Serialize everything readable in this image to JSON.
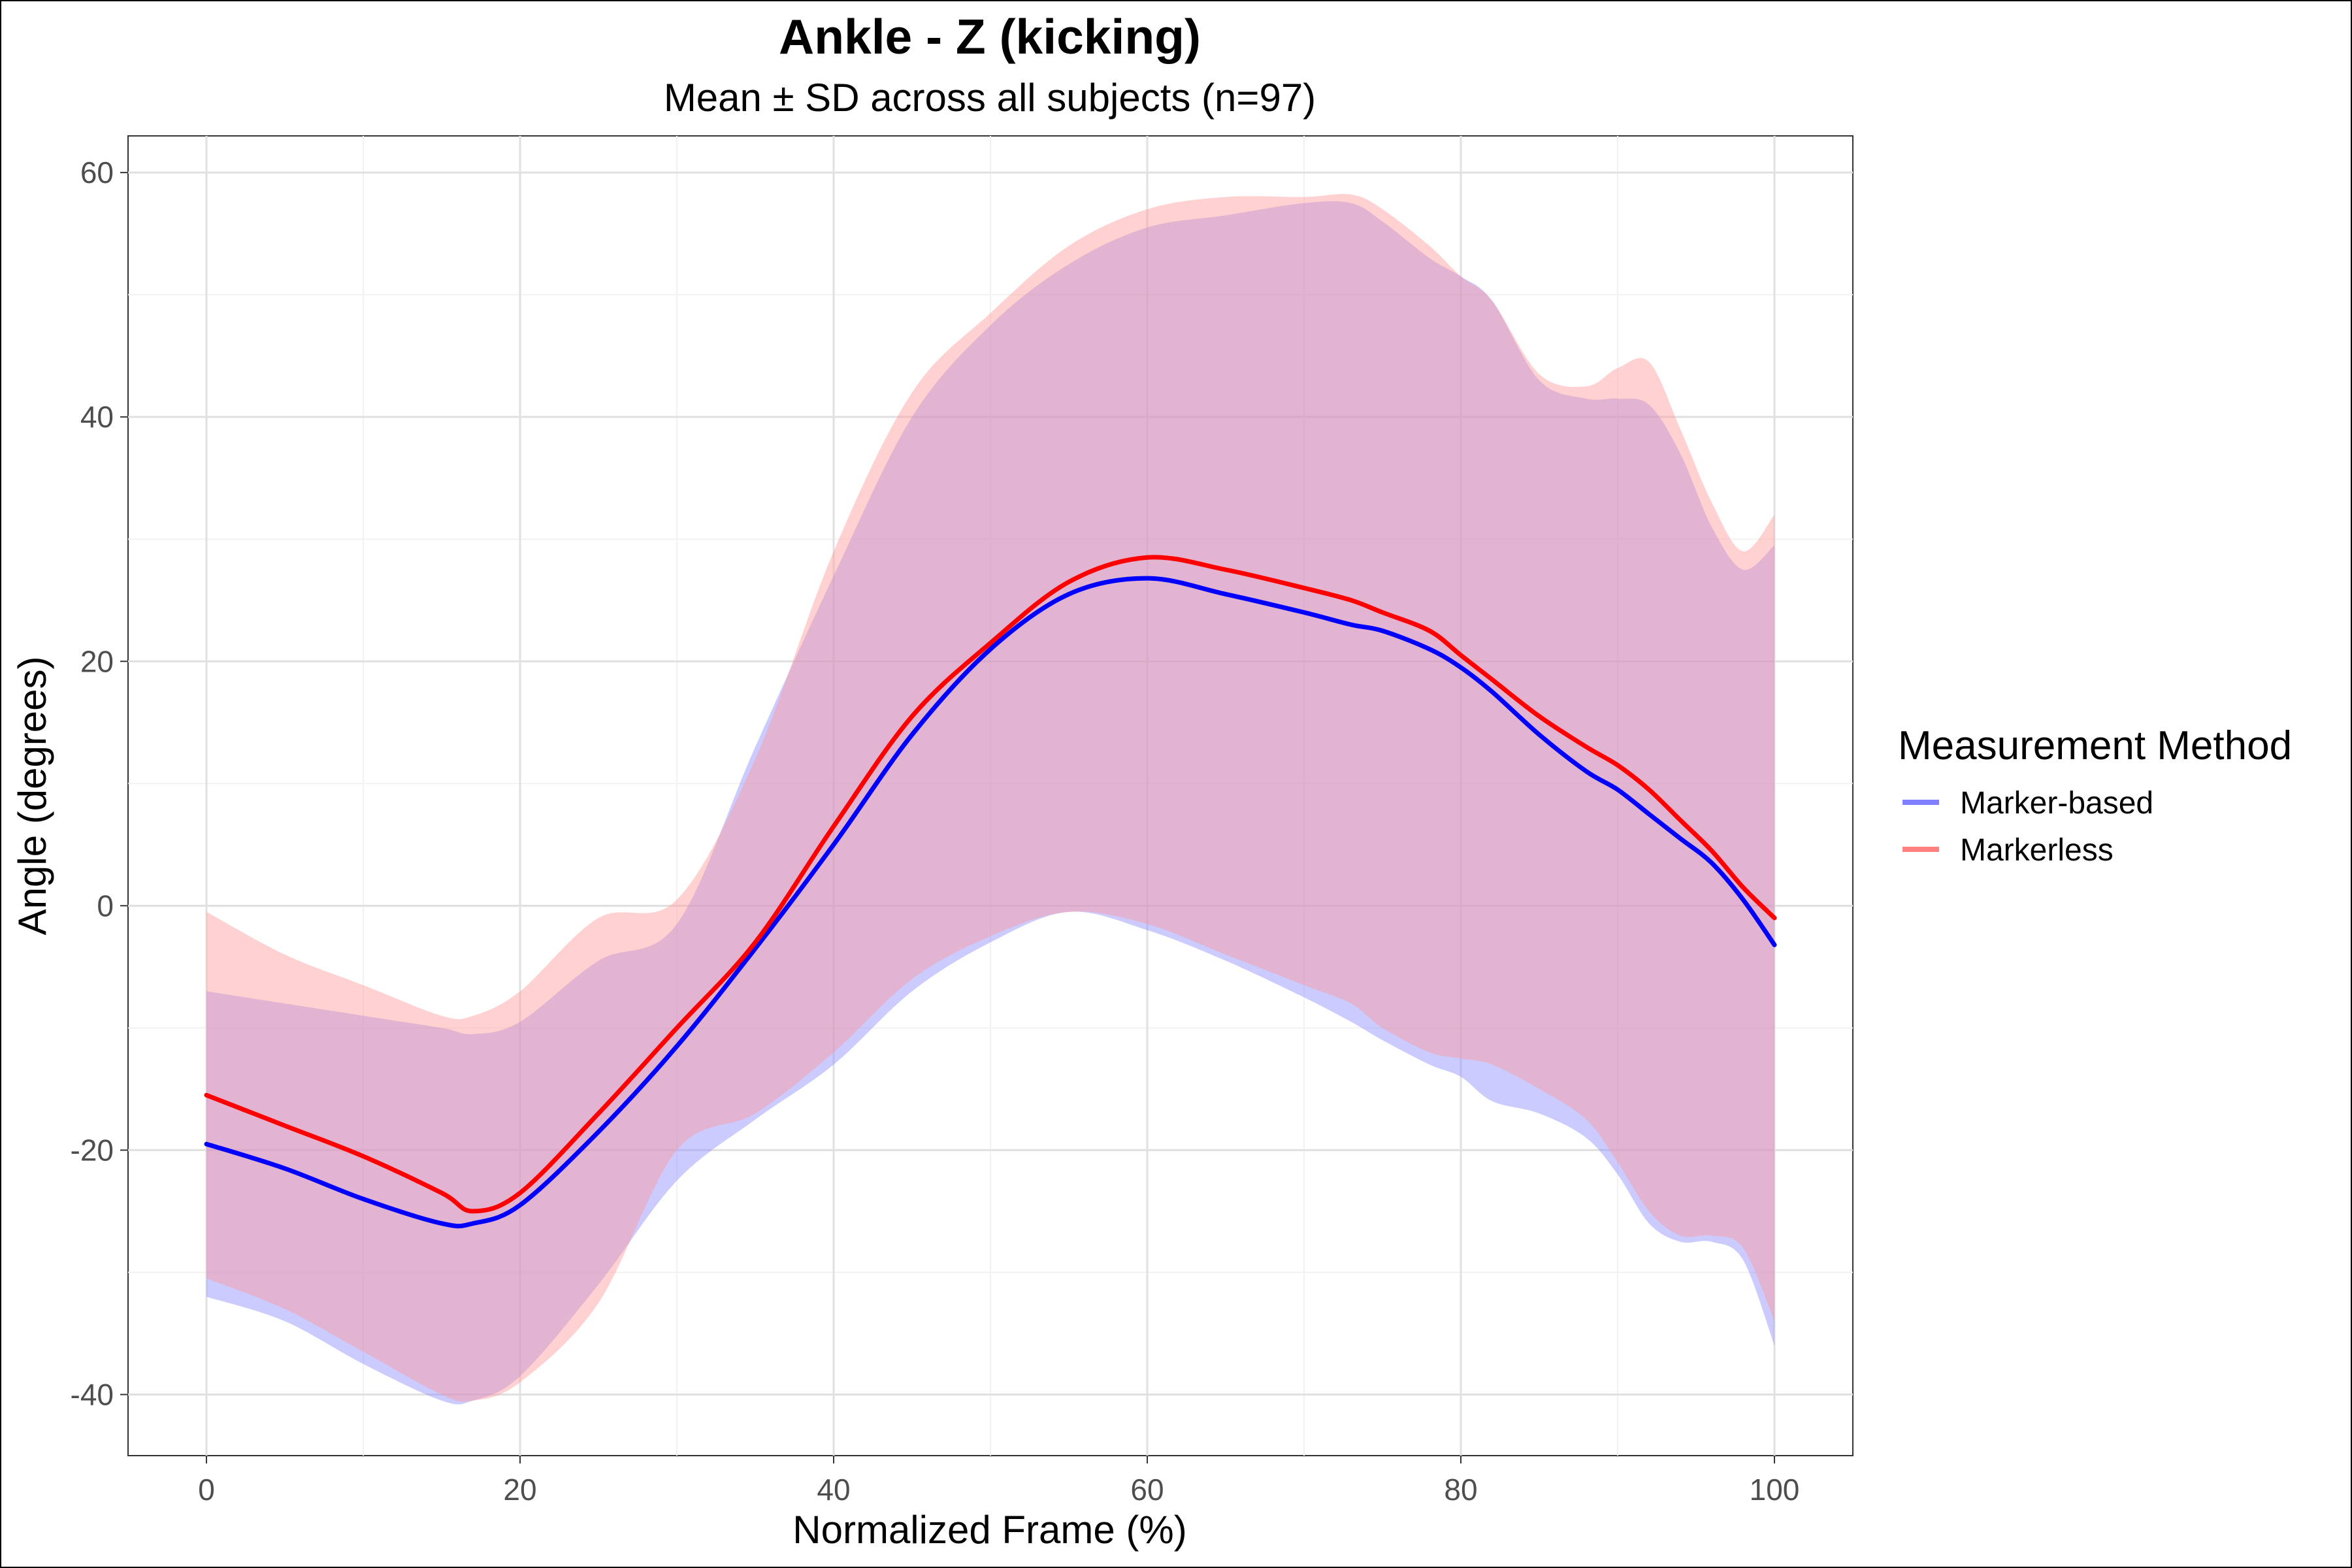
{
  "chart_data": {
    "type": "line",
    "title": "Ankle - Z (kicking)",
    "subtitle": "Mean ± SD across all subjects (n=97)",
    "xlabel": "Normalized Frame (%)",
    "ylabel": "Angle (degrees)",
    "xlim": [
      -5,
      105
    ],
    "ylim": [
      -45,
      63
    ],
    "xticks": [
      0,
      20,
      40,
      60,
      80,
      100
    ],
    "yticks": [
      -40,
      -20,
      0,
      20,
      40,
      60
    ],
    "grid": true,
    "legend": {
      "title": "Measurement Method",
      "position": "right"
    },
    "x": [
      0,
      5,
      10,
      15,
      17,
      20,
      25,
      30,
      35,
      40,
      45,
      50,
      55,
      60,
      65,
      70,
      73,
      75,
      78,
      80,
      82,
      85,
      88,
      90,
      92,
      94,
      96,
      98,
      100
    ],
    "series": [
      {
        "name": "Marker-based",
        "color": "#0000ff",
        "band_color": "#8c8cff",
        "mean": [
          -19.5,
          -21.5,
          -24.0,
          -26.0,
          -26.0,
          -24.5,
          -18.5,
          -11.5,
          -3.5,
          5.0,
          14.0,
          21.0,
          25.5,
          26.8,
          25.5,
          24.0,
          23.0,
          22.5,
          21.0,
          19.5,
          17.5,
          14.0,
          11.0,
          9.5,
          7.5,
          5.5,
          3.5,
          0.5,
          -3.2
        ],
        "lower": [
          -32.0,
          -34.0,
          -37.5,
          -40.5,
          -40.5,
          -38.5,
          -31.0,
          -22.5,
          -17.5,
          -13.0,
          -7.0,
          -3.0,
          -0.5,
          -2.0,
          -4.5,
          -7.5,
          -9.5,
          -11.0,
          -13.0,
          -14.0,
          -16.0,
          -17.0,
          -19.0,
          -22.0,
          -26.0,
          -27.5,
          -27.5,
          -29.0,
          -36.0
        ],
        "upper": [
          -7.0,
          -8.0,
          -9.0,
          -10.0,
          -10.5,
          -9.5,
          -4.5,
          -1.5,
          13.0,
          27.0,
          40.0,
          47.5,
          52.5,
          55.5,
          56.5,
          57.5,
          57.5,
          56.0,
          53.0,
          51.5,
          49.5,
          43.0,
          41.5,
          41.5,
          41.0,
          37.0,
          31.0,
          27.5,
          29.5
        ]
      },
      {
        "name": "Markerless",
        "color": "#ff0000",
        "band_color": "#ff9a9a",
        "mean": [
          -15.5,
          -18.0,
          -20.5,
          -23.5,
          -25.0,
          -23.5,
          -17.0,
          -10.0,
          -3.0,
          6.5,
          15.5,
          21.5,
          26.5,
          28.5,
          27.5,
          26.0,
          25.0,
          24.0,
          22.5,
          20.5,
          18.5,
          15.5,
          13.0,
          11.5,
          9.5,
          7.0,
          4.5,
          1.5,
          -1.0
        ],
        "lower": [
          -30.5,
          -33.0,
          -36.5,
          -40.0,
          -40.5,
          -39.0,
          -32.5,
          -20.0,
          -17.0,
          -12.0,
          -6.0,
          -2.5,
          -0.5,
          -1.5,
          -4.0,
          -6.5,
          -8.0,
          -10.0,
          -12.0,
          -12.5,
          -13.0,
          -15.0,
          -17.5,
          -21.0,
          -25.0,
          -27.0,
          -27.0,
          -28.0,
          -34.0
        ],
        "upper": [
          -0.5,
          -4.0,
          -6.5,
          -9.0,
          -9.0,
          -7.0,
          -1.0,
          0.5,
          12.0,
          29.0,
          42.0,
          48.5,
          54.0,
          57.0,
          58.0,
          58.0,
          58.2,
          57.0,
          54.0,
          51.5,
          49.5,
          43.5,
          42.5,
          44.0,
          44.5,
          39.0,
          33.0,
          29.0,
          32.0
        ]
      }
    ]
  }
}
